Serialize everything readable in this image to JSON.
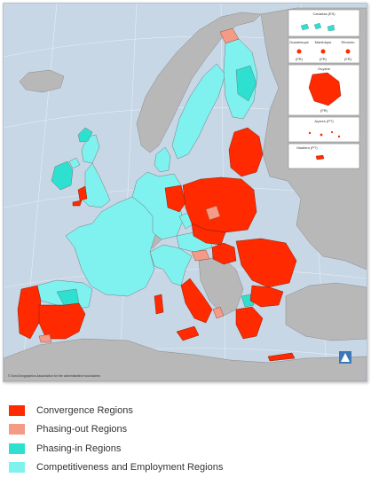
{
  "colors": {
    "sea": "#c7d7e6",
    "land_other": "#b8b8b8",
    "border": "#6e6e6e",
    "convergence": "#ff2a00",
    "phasing_out": "#f49a86",
    "phasing_in": "#2de0d0",
    "competitiveness": "#7ff2f0",
    "inset_bg": "#ffffff"
  },
  "insets": {
    "canarias": "Canarias (ES)",
    "guadeloupe": "Guadeloupe",
    "martinique": "Martinique",
    "reunion": "Réunion",
    "guadeloupe_code": "(FR)",
    "martinique_code": "(FR)",
    "reunion_code": "(FR)",
    "guyane": "Guyane",
    "guyane_code": "(FR)",
    "acores": "Açores (PT)",
    "madeira": "Madeira (PT)"
  },
  "copyright": "© EuroGeographics Association for the administrative boundaries",
  "legend": {
    "items": [
      {
        "label": "Convergence Regions",
        "color": "#ff2a00"
      },
      {
        "label": "Phasing-out Regions",
        "color": "#f49a86"
      },
      {
        "label": "Phasing-in Regions",
        "color": "#2de0d0"
      },
      {
        "label": "Competitiveness and Employment Regions",
        "color": "#7ff2f0"
      }
    ]
  }
}
